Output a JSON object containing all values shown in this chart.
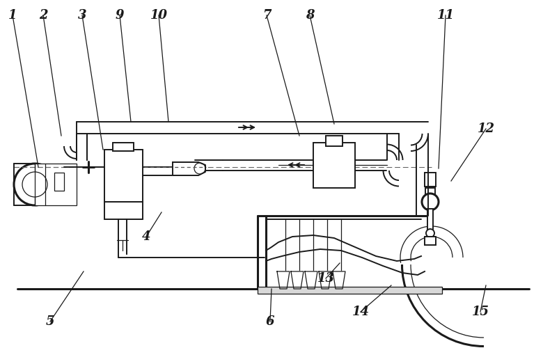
{
  "bg_color": "#ffffff",
  "lc": "#1a1a1a",
  "lw": 1.4,
  "lw2": 0.9,
  "lw3": 2.2,
  "labels": [
    [
      "1",
      18,
      22,
      55,
      240
    ],
    [
      "2",
      62,
      22,
      88,
      195
    ],
    [
      "3",
      118,
      22,
      148,
      215
    ],
    [
      "9",
      172,
      22,
      188,
      175
    ],
    [
      "10",
      228,
      22,
      242,
      175
    ],
    [
      "7",
      383,
      22,
      430,
      195
    ],
    [
      "8",
      445,
      22,
      480,
      178
    ],
    [
      "11",
      640,
      22,
      630,
      242
    ],
    [
      "4",
      210,
      340,
      232,
      305
    ],
    [
      "5",
      72,
      462,
      120,
      390
    ],
    [
      "6",
      388,
      462,
      390,
      415
    ],
    [
      "12",
      698,
      185,
      648,
      260
    ],
    [
      "13",
      468,
      400,
      488,
      378
    ],
    [
      "14",
      518,
      448,
      562,
      410
    ],
    [
      "15",
      690,
      448,
      698,
      410
    ]
  ]
}
